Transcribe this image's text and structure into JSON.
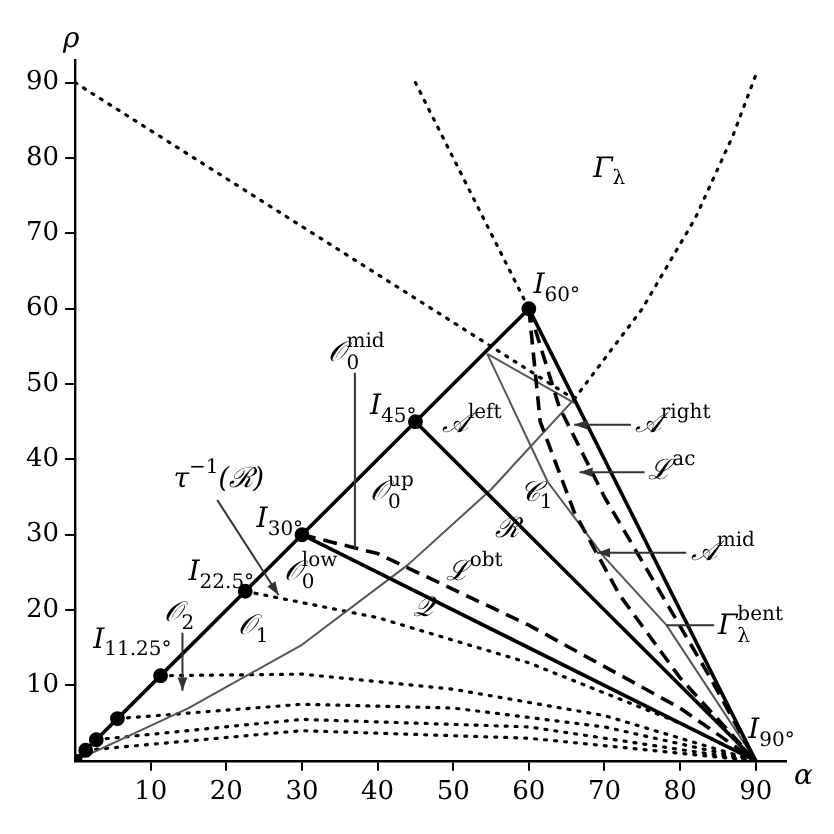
{
  "chart_data": {
    "type": "line",
    "xlabel": "α",
    "ylabel": "ρ",
    "xlim": [
      0,
      94
    ],
    "ylim": [
      0,
      93
    ],
    "xticks": [
      10,
      20,
      30,
      40,
      50,
      60,
      70,
      80,
      90
    ],
    "yticks": [
      10,
      20,
      30,
      40,
      50,
      60,
      70,
      80,
      90
    ],
    "grid": false,
    "legend": false,
    "series": [
      {
        "color": "#000000",
        "line_style": "solid",
        "marker": "circle",
        "x": [
          0,
          1.4,
          2.8,
          5.6,
          11.3,
          22.5,
          30,
          45,
          60
        ],
        "values": [
          0,
          1.4,
          2.8,
          5.6,
          11.3,
          22.5,
          30,
          45,
          60
        ]
      },
      {
        "color": "#000000",
        "line_style": "solid",
        "x": [
          60,
          90
        ],
        "values": [
          60,
          0
        ]
      },
      {
        "color": "#000000",
        "line_style": "solid",
        "x": [
          45,
          90
        ],
        "values": [
          45,
          0
        ]
      },
      {
        "color": "#000000",
        "line_style": "solid",
        "x": [
          30,
          90
        ],
        "values": [
          30,
          0
        ]
      },
      {
        "color": "#000000",
        "line_style": "dashed",
        "x": [
          30,
          40,
          60,
          80,
          90
        ],
        "values": [
          30,
          27.5,
          18,
          7,
          0
        ]
      },
      {
        "color": "#000000",
        "line_style": "dashed",
        "x": [
          60,
          61.5,
          66,
          72,
          80,
          90
        ],
        "values": [
          60,
          45,
          33,
          22,
          11,
          0
        ]
      },
      {
        "color": "#000000",
        "line_style": "dashed",
        "x": [
          60,
          64,
          70,
          77,
          84,
          90
        ],
        "values": [
          60,
          47,
          35,
          23,
          11,
          0
        ]
      },
      {
        "color": "#555555",
        "line_style": "solid",
        "x": [
          0,
          15,
          30,
          44,
          55,
          66
        ],
        "values": [
          0,
          7,
          15.4,
          26,
          36,
          48
        ]
      },
      {
        "color": "#555555",
        "line_style": "solid",
        "x": [
          54.5,
          66
        ],
        "values": [
          54,
          47.5
        ]
      },
      {
        "color": "#555555",
        "line_style": "solid",
        "x": [
          54.5,
          62.5,
          70,
          78.2,
          90
        ],
        "values": [
          54,
          37,
          27,
          18,
          0
        ]
      },
      {
        "color": "#000000",
        "line_style": "dotted",
        "x": [
          0,
          66
        ],
        "values": [
          90,
          48
        ]
      },
      {
        "color": "#000000",
        "line_style": "dotted",
        "x": [
          66,
          75,
          82,
          87,
          90
        ],
        "values": [
          48,
          60,
          72,
          83,
          91
        ]
      },
      {
        "color": "#000000",
        "line_style": "dotted",
        "x": [
          45,
          60
        ],
        "values": [
          90,
          60
        ]
      },
      {
        "color": "#000000",
        "line_style": "dotted",
        "x": [
          22.5,
          40,
          60,
          80,
          90
        ],
        "values": [
          22.5,
          19,
          13,
          5,
          0
        ]
      },
      {
        "color": "#000000",
        "line_style": "dotted",
        "x": [
          11.3,
          30,
          50,
          70,
          90
        ],
        "values": [
          11.3,
          11.5,
          9.5,
          6,
          0
        ]
      },
      {
        "color": "#000000",
        "line_style": "dotted",
        "x": [
          5.6,
          30,
          50,
          70,
          90
        ],
        "values": [
          5.6,
          7.5,
          7,
          4.5,
          0
        ]
      },
      {
        "color": "#000000",
        "line_style": "dotted",
        "x": [
          2.8,
          30,
          60,
          90
        ],
        "values": [
          2.8,
          5.5,
          4.5,
          0
        ]
      },
      {
        "color": "#000000",
        "line_style": "dotted",
        "x": [
          1.4,
          30,
          60,
          90
        ],
        "values": [
          1.4,
          4,
          3,
          0
        ]
      }
    ],
    "annotations": [
      "Γ$_{λ}$",
      "I$_{60°}$",
      {
        "text": "𝒪$_{0}$$^{mid}$",
        "x": 37,
        "y": 28
      },
      "I$_{45°}$",
      "𝒜$^{left}$",
      {
        "text": "𝒜$^{right}$",
        "x": 66,
        "y": 44.6
      },
      {
        "text": "ℒ$^{ac}$",
        "x": 66.7,
        "y": 38.3
      },
      "𝒞$_{1}$",
      {
        "text": "τ$^{−1}$(ℛ)",
        "x": 26.9,
        "y": 22
      },
      "𝒪$_{0}$$^{up}$",
      "ℛ",
      "ℒ$^{obt}$",
      "I$_{30°}$",
      "𝒪$_{0}$$^{low}$",
      "𝒬",
      "I$_{22.5°}$",
      "𝒪$_{1}$",
      "𝒪$_{2}$",
      "I$_{11.25°}$",
      {
        "text": "𝒜$^{mid}$",
        "x": 69,
        "y": 27.6
      },
      {
        "text": "Γ$_{λ}$$^{bent}$",
        "x": 78.2,
        "y": 18
      },
      "I$_{90°}$"
    ]
  }
}
